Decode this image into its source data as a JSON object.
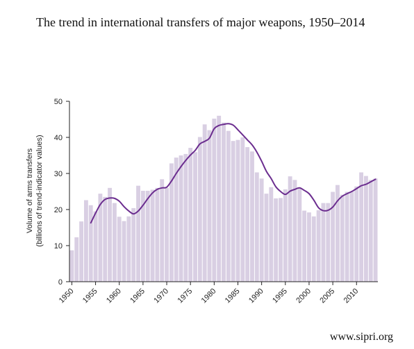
{
  "header": {
    "title": "The trend in international transfers of major weapons, 1950–2014"
  },
  "footer": {
    "source": "www.sipri.org"
  },
  "colors": {
    "bar": "#d9cfe3",
    "line": "#6b2d8f",
    "axis": "#222222",
    "text": "#222222"
  },
  "chart_data": {
    "type": "bar",
    "title": "The trend in international transfers of major weapons, 1950–2014",
    "ylabel_lines": [
      "Volume of arms transfers",
      "(billions of trend-indicator values)"
    ],
    "ylim": [
      0,
      50
    ],
    "yticks": [
      0,
      10,
      20,
      30,
      40,
      50
    ],
    "xticks": [
      1950,
      1955,
      1960,
      1965,
      1970,
      1975,
      1980,
      1985,
      1990,
      1995,
      2000,
      2005,
      2010
    ],
    "grid": false,
    "series": [
      {
        "type": "bar",
        "x": [
          1950,
          1951,
          1952,
          1953,
          1954,
          1955,
          1956,
          1957,
          1958,
          1959,
          1960,
          1961,
          1962,
          1963,
          1964,
          1965,
          1966,
          1967,
          1968,
          1969,
          1970,
          1971,
          1972,
          1973,
          1974,
          1975,
          1976,
          1977,
          1978,
          1979,
          1980,
          1981,
          1982,
          1983,
          1984,
          1985,
          1986,
          1987,
          1988,
          1989,
          1990,
          1991,
          1992,
          1993,
          1994,
          1995,
          1996,
          1997,
          1998,
          1999,
          2000,
          2001,
          2002,
          2003,
          2004,
          2005,
          2006,
          2007,
          2008,
          2009,
          2010,
          2011,
          2012,
          2013,
          2014
        ],
        "values": [
          8.7,
          12.3,
          16.7,
          22.6,
          21.2,
          19.5,
          24.4,
          23.5,
          26.0,
          21.8,
          18.0,
          16.8,
          18.1,
          20.4,
          26.6,
          25.2,
          25.2,
          25.5,
          26.0,
          28.4,
          26.0,
          32.8,
          34.4,
          35.0,
          35.4,
          37.1,
          35.9,
          40.1,
          43.6,
          42.0,
          45.2,
          46.0,
          44.1,
          41.8,
          39.0,
          39.3,
          40.0,
          37.3,
          36.1,
          30.3,
          28.6,
          24.4,
          26.2,
          23.1,
          23.2,
          25.6,
          29.2,
          28.2,
          25.8,
          19.7,
          19.2,
          18.1,
          19.8,
          21.8,
          21.8,
          24.9,
          26.8,
          24.1,
          24.9,
          25.0,
          26.4,
          30.3,
          29.3,
          28.2,
          28.6
        ]
      },
      {
        "type": "line",
        "x": [
          1954,
          1955,
          1956,
          1957,
          1958,
          1959,
          1960,
          1961,
          1962,
          1963,
          1964,
          1965,
          1966,
          1967,
          1968,
          1969,
          1970,
          1971,
          1972,
          1973,
          1974,
          1975,
          1976,
          1977,
          1978,
          1979,
          1980,
          1981,
          1982,
          1983,
          1984,
          1985,
          1986,
          1987,
          1988,
          1989,
          1990,
          1991,
          1992,
          1993,
          1994,
          1995,
          1996,
          1997,
          1998,
          1999,
          2000,
          2001,
          2002,
          2003,
          2004,
          2005,
          2006,
          2007,
          2008,
          2009,
          2010,
          2011,
          2012,
          2013,
          2014
        ],
        "values": [
          16.3,
          19.0,
          21.4,
          22.8,
          23.2,
          23.1,
          22.3,
          20.8,
          19.6,
          18.8,
          19.6,
          21.2,
          23.0,
          24.6,
          25.6,
          26.0,
          26.2,
          27.9,
          30.0,
          31.9,
          33.6,
          35.1,
          36.4,
          38.2,
          38.9,
          39.8,
          42.4,
          43.3,
          43.6,
          43.8,
          43.4,
          42.1,
          40.7,
          39.3,
          37.9,
          35.9,
          33.4,
          30.6,
          28.6,
          26.3,
          25.0,
          24.2,
          25.1,
          25.6,
          26.0,
          25.3,
          24.4,
          22.6,
          20.5,
          19.7,
          19.8,
          20.7,
          22.4,
          23.7,
          24.4,
          25.0,
          25.8,
          26.6,
          27.0,
          27.7,
          28.4
        ]
      }
    ]
  }
}
